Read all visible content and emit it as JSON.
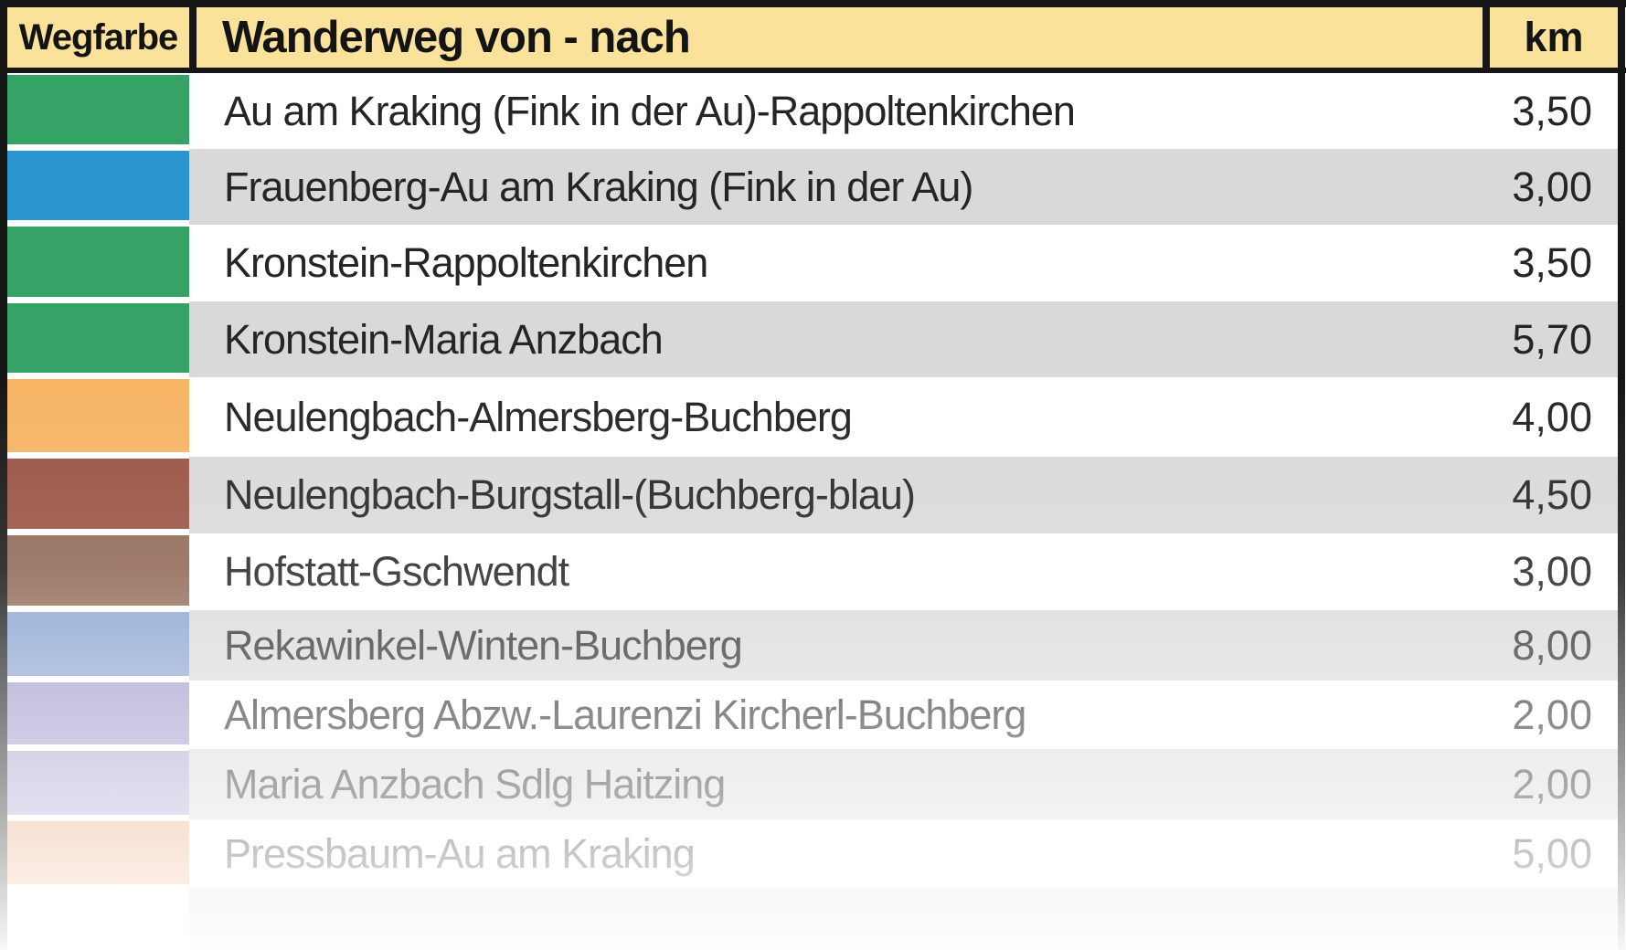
{
  "table": {
    "header": {
      "col_color": "Wegfarbe",
      "col_route": "Wanderweg von - nach",
      "col_km": "km"
    },
    "rows": [
      {
        "route": "Au am Kraking (Fink in der Au)-Rappoltenkirchen",
        "km": "3,50",
        "trail_color": "#35a266",
        "trail_color_name": "green",
        "row_bg": "#ffffff"
      },
      {
        "route": "Frauenberg-Au am Kraking (Fink in der Au)",
        "km": "3,00",
        "trail_color": "#2b95cf",
        "trail_color_name": "blue",
        "row_bg": "#d9d9d9"
      },
      {
        "route": "Kronstein-Rappoltenkirchen",
        "km": "3,50",
        "trail_color": "#35a266",
        "trail_color_name": "green",
        "row_bg": "#ffffff"
      },
      {
        "route": "Kronstein-Maria Anzbach",
        "km": "5,70",
        "trail_color": "#35a266",
        "trail_color_name": "green",
        "row_bg": "#d9d9d9"
      },
      {
        "route": "Neulengbach-Almersberg-Buchberg",
        "km": "4,00",
        "trail_color": "#f6b464",
        "trail_color_name": "orange",
        "row_bg": "#ffffff"
      },
      {
        "route": "Neulengbach-Burgstall-(Buchberg-blau)",
        "km": "4,50",
        "trail_color": "#985243",
        "trail_color_name": "red-brown",
        "row_bg": "#d9d9d9"
      },
      {
        "route": "Hofstatt-Gschwendt",
        "km": "3,00",
        "trail_color": "#8f6754",
        "trail_color_name": "brown",
        "row_bg": "#ffffff"
      },
      {
        "route": "Rekawinkel-Winten-Buchberg",
        "km": "8,00",
        "trail_color": "#84a0ce",
        "trail_color_name": "light-blue",
        "row_bg": "#d9d9d9"
      },
      {
        "route": "Almersberg Abzw.-Laurenzi Kircherl-Buchberg",
        "km": "2,00",
        "trail_color": "#9b98c9",
        "trail_color_name": "violet",
        "row_bg": "#ffffff"
      },
      {
        "route": "Maria Anzbach Sdlg Haitzing",
        "km": "2,00",
        "trail_color": "#a9a2ce",
        "trail_color_name": "violet",
        "row_bg": "#d9d9d9"
      },
      {
        "route": "Pressbaum-Au am Kraking",
        "km": "5,00",
        "trail_color": "#e8a478",
        "trail_color_name": "orange-red",
        "row_bg": "#ffffff"
      },
      {
        "route": "",
        "km": "",
        "trail_color": "",
        "trail_color_name": "none",
        "row_bg": "#d9d9d9"
      }
    ]
  },
  "colors": {
    "header_bg": "#fae29a",
    "row_bg_white": "#ffffff",
    "row_bg_gray": "#d9d9d9",
    "border": "#161616",
    "text": "#262424"
  }
}
